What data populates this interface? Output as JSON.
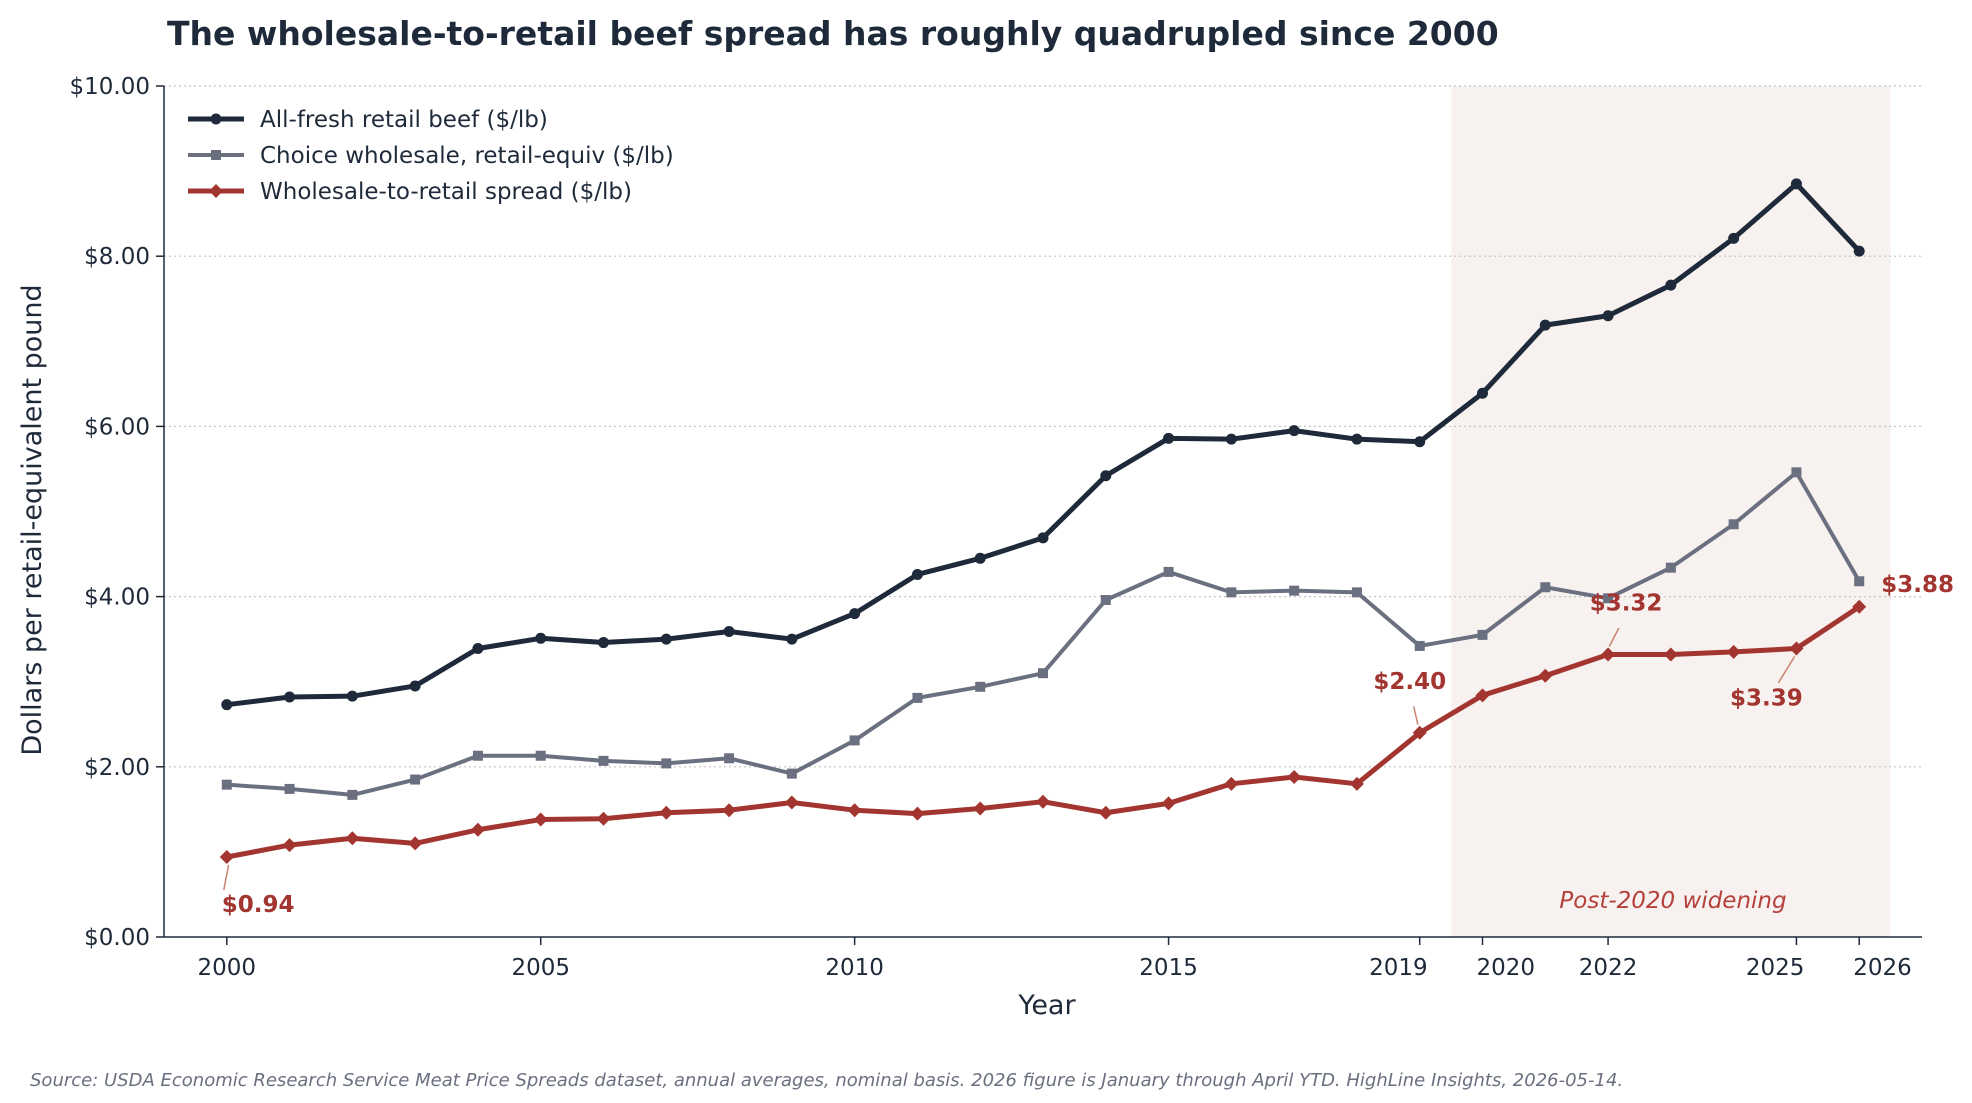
{
  "chart_data": {
    "type": "line",
    "title": "The wholesale-to-retail beef spread has roughly quadrupled since 2000",
    "xlabel": "Year",
    "ylabel": "Dollars per retail-equivalent pound",
    "xlim": [
      1999,
      2027
    ],
    "ylim": [
      0,
      10
    ],
    "x_ticks": [
      2000,
      2005,
      2010,
      2015,
      2019,
      2020,
      2022,
      2025,
      2026
    ],
    "y_ticks": [
      "$0.00",
      "$2.00",
      "$4.00",
      "$6.00",
      "$8.00",
      "$10.00"
    ],
    "y_tick_values": [
      0,
      2,
      4,
      6,
      8,
      10
    ],
    "grid": "horizontal dotted",
    "legend_position": "top-left",
    "x": [
      2000,
      2001,
      2002,
      2003,
      2004,
      2005,
      2006,
      2007,
      2008,
      2009,
      2010,
      2011,
      2012,
      2013,
      2014,
      2015,
      2016,
      2017,
      2018,
      2019,
      2020,
      2021,
      2022,
      2023,
      2024,
      2025,
      2026
    ],
    "series": [
      {
        "name": "All-fresh retail beef ($/lb)",
        "color": "#1e2a3a",
        "marker": "circle",
        "values": [
          2.73,
          2.82,
          2.83,
          2.95,
          3.39,
          3.51,
          3.46,
          3.5,
          3.59,
          3.5,
          3.8,
          4.26,
          4.45,
          4.69,
          5.42,
          5.86,
          5.85,
          5.95,
          5.85,
          5.82,
          6.39,
          7.19,
          7.3,
          7.66,
          8.21,
          8.85,
          8.06
        ]
      },
      {
        "name": "Choice wholesale, retail-equiv ($/lb)",
        "color": "#6b7080",
        "marker": "square",
        "values": [
          1.79,
          1.74,
          1.67,
          1.85,
          2.13,
          2.13,
          2.07,
          2.04,
          2.1,
          1.92,
          2.31,
          2.81,
          2.94,
          3.1,
          3.96,
          4.29,
          4.05,
          4.07,
          4.05,
          3.42,
          3.55,
          4.11,
          3.98,
          4.34,
          4.85,
          5.46,
          4.18
        ]
      },
      {
        "name": "Wholesale-to-retail spread ($/lb)",
        "color": "#a33530",
        "marker": "diamond",
        "values": [
          0.94,
          1.08,
          1.16,
          1.1,
          1.26,
          1.38,
          1.39,
          1.46,
          1.49,
          1.58,
          1.49,
          1.45,
          1.51,
          1.59,
          1.46,
          1.57,
          1.8,
          1.88,
          1.8,
          2.4,
          2.84,
          3.07,
          3.32,
          3.32,
          3.35,
          3.39,
          3.88
        ]
      }
    ],
    "annotations": [
      {
        "label": "$0.94",
        "x": 2000,
        "value": 0.94,
        "placement": "below-right"
      },
      {
        "label": "$2.40",
        "x": 2019,
        "value": 2.4,
        "placement": "above-left"
      },
      {
        "label": "$3.32",
        "x": 2022,
        "value": 3.32,
        "placement": "above"
      },
      {
        "label": "$3.39",
        "x": 2025,
        "value": 3.39,
        "placement": "below-left"
      },
      {
        "label": "$3.88",
        "x": 2026,
        "value": 3.88,
        "placement": "right"
      }
    ],
    "shaded_region": {
      "from": 2019.5,
      "to": 2026.5,
      "label": "Post-2020 widening",
      "color": "#f7f1ef"
    },
    "source": "Source: USDA Economic Research Service Meat Price Spreads dataset, annual averages, nominal basis. 2026 figure is January through April YTD. HighLine Insights, 2026-05-14."
  }
}
